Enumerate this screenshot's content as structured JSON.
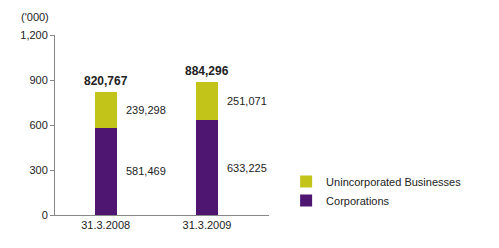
{
  "chart_data": {
    "type": "bar",
    "stacked": true,
    "y_label": "('000)",
    "categories": [
      "31.3.2008",
      "31.3.2009"
    ],
    "series": [
      {
        "name": "Corporations",
        "color": "#4e1571",
        "values": [
          581.469,
          633.225
        ],
        "value_labels": [
          "581,469",
          "633,225"
        ]
      },
      {
        "name": "Unincorporated Businesses",
        "color": "#c3c41a",
        "values": [
          239.298,
          251.071
        ],
        "value_labels": [
          "239,298",
          "251,071"
        ]
      }
    ],
    "totals": [
      820.767,
      884.296
    ],
    "total_labels": [
      "820,767",
      "884,296"
    ],
    "ylim": [
      0,
      1200
    ],
    "yticks": [
      0,
      300,
      600,
      900,
      {
        "value": 1200,
        "label": "1,200"
      }
    ],
    "grid": false,
    "legend": "lower right",
    "data_labels": true
  }
}
